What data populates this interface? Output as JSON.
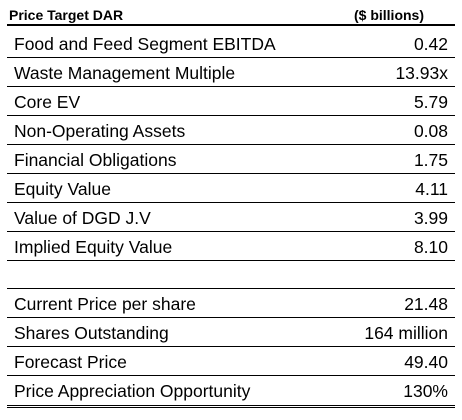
{
  "header": {
    "title": "Price Target DAR",
    "units": "($ billions)"
  },
  "valuation_rows": [
    {
      "label": "Food and Feed Segment EBITDA",
      "value": "0.42"
    },
    {
      "label": "Waste Management Multiple",
      "value": "13.93x"
    },
    {
      "label": "Core EV",
      "value": "5.79"
    },
    {
      "label": "Non-Operating Assets",
      "value": "0.08"
    },
    {
      "label": "Financial Obligations",
      "value": "1.75"
    },
    {
      "label": "Equity Value",
      "value": "4.11"
    },
    {
      "label": "Value of DGD J.V",
      "value": "3.99"
    },
    {
      "label": "Implied Equity Value",
      "value": "8.10"
    }
  ],
  "price_rows": [
    {
      "label": "Current Price per share",
      "value": "21.48"
    },
    {
      "label": "Shares Outstanding",
      "value": "164 million"
    },
    {
      "label": "Forecast Price",
      "value": "49.40"
    },
    {
      "label": "Price Appreciation Opportunity",
      "value": "130%"
    }
  ]
}
